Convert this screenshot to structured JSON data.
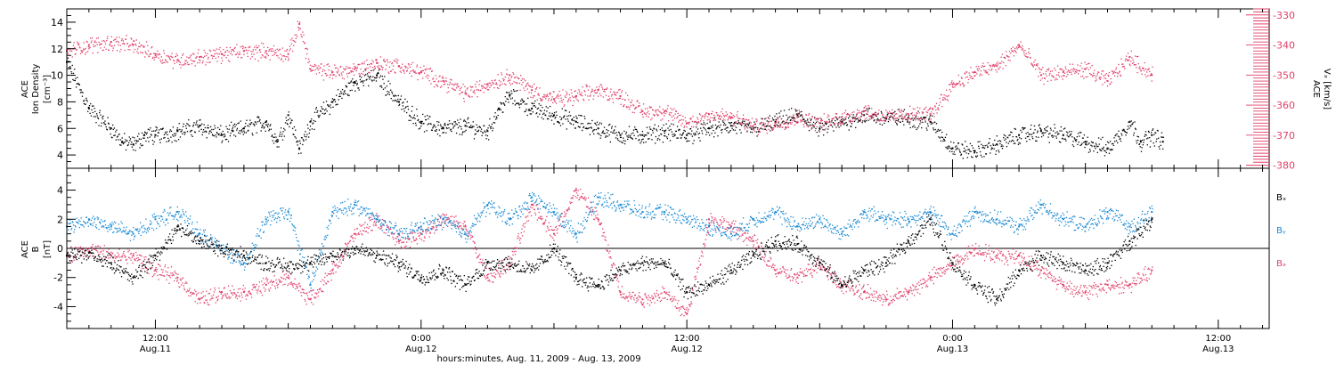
{
  "colors": {
    "black": "#000000",
    "blue": "#1a8ad4",
    "pink": "#e0406a"
  },
  "x_axis": {
    "ticks": [
      {
        "time": "12:00",
        "date": "Aug.11",
        "hours": 12
      },
      {
        "time": "0:00",
        "date": "Aug.12",
        "hours": 24
      },
      {
        "time": "12:00",
        "date": "Aug.12",
        "hours": 36
      },
      {
        "time": "0:00",
        "date": "Aug.13",
        "hours": 48
      },
      {
        "time": "12:00",
        "date": "Aug.13",
        "hours": 60
      }
    ],
    "label": "hours:minutes, Aug. 11, 2009 - Aug. 13, 2009",
    "range_hours": [
      8.0,
      62.3
    ]
  },
  "chart_data": [
    {
      "type": "scatter",
      "panel": "top",
      "ylabel_left": [
        "ACE",
        "Ion Density",
        "[cm⁻³]"
      ],
      "ylabel_right": [
        "ACE",
        "Vₓ [km/s]"
      ],
      "left_axis": {
        "ylim": [
          3,
          15
        ],
        "ticks": [
          "4",
          "6",
          "8",
          "10",
          "12",
          "14"
        ],
        "tick_values": [
          4,
          6,
          8,
          10,
          12,
          14
        ]
      },
      "right_axis": {
        "ylim": [
          -381,
          -328
        ],
        "ticks": [
          "-330",
          "-340",
          "-350",
          "-360",
          "-370",
          "-380"
        ],
        "tick_values": [
          -330,
          -340,
          -350,
          -360,
          -370,
          -380
        ]
      },
      "series": [
        {
          "color": "black",
          "axis": "left",
          "x": [
            8.0,
            9.0,
            10.0,
            10.5,
            11.0,
            11.5,
            12.0,
            13.0,
            14.0,
            15.0,
            15.5,
            16.0,
            17.0,
            17.5,
            18.0,
            18.5,
            19.0,
            20.0,
            21.0,
            22.0,
            23.0,
            24.0,
            25.0,
            26.0,
            27.0,
            27.5,
            28.0,
            29.0,
            30.0,
            31.0,
            32.0,
            33.0,
            34.0,
            35.0,
            36.0,
            37.0,
            38.0,
            39.0,
            40.0,
            41.0,
            42.0,
            43.0,
            44.0,
            45.0,
            46.0,
            47.0,
            48.0,
            49.0,
            50.0,
            51.0,
            52.0,
            53.0,
            54.0,
            55.0,
            56.0,
            56.5,
            57.0,
            57.5
          ],
          "y": [
            11.0,
            7.5,
            6.0,
            5.0,
            4.8,
            5.5,
            5.5,
            5.8,
            6.2,
            5.5,
            5.8,
            6.0,
            6.5,
            5.0,
            7.0,
            4.5,
            6.5,
            8.0,
            9.5,
            10.0,
            8.0,
            6.5,
            6.0,
            6.2,
            5.8,
            7.5,
            8.5,
            7.5,
            7.0,
            6.5,
            6.0,
            5.5,
            5.5,
            5.8,
            5.5,
            6.0,
            6.2,
            6.0,
            6.5,
            7.0,
            6.0,
            6.5,
            7.0,
            6.8,
            6.8,
            6.5,
            4.5,
            4.3,
            4.8,
            5.5,
            5.8,
            5.5,
            5.0,
            4.5,
            6.5,
            5.0,
            5.5,
            5.0
          ]
        },
        {
          "color": "pink",
          "axis": "right",
          "x": [
            8.0,
            9.0,
            10.0,
            11.0,
            12.0,
            13.0,
            14.0,
            15.0,
            16.0,
            17.0,
            18.0,
            18.5,
            19.0,
            20.0,
            21.0,
            22.0,
            23.0,
            24.0,
            25.0,
            26.0,
            27.0,
            28.0,
            29.0,
            30.0,
            31.0,
            32.0,
            33.0,
            34.0,
            35.0,
            36.0,
            37.0,
            38.0,
            39.0,
            40.0,
            41.0,
            42.0,
            43.0,
            44.0,
            45.0,
            46.0,
            47.0,
            48.0,
            49.0,
            50.0,
            51.0,
            52.0,
            53.0,
            54.0,
            55.0,
            56.0,
            57.0
          ],
          "y": [
            -342,
            -340,
            -339,
            -340,
            -343,
            -345,
            -344,
            -343,
            -342,
            -342,
            -343,
            -333,
            -348,
            -349,
            -348,
            -346,
            -347,
            -349,
            -352,
            -356,
            -353,
            -350,
            -355,
            -358,
            -357,
            -355,
            -357,
            -362,
            -362,
            -366,
            -363,
            -364,
            -367,
            -366,
            -364,
            -366,
            -364,
            -362,
            -364,
            -363,
            -363,
            -353,
            -349,
            -347,
            -340,
            -350,
            -349,
            -348,
            -352,
            -344,
            -350
          ]
        }
      ]
    },
    {
      "type": "scatter",
      "panel": "bottom",
      "ylabel": [
        "ACE",
        "B",
        "[nT]"
      ],
      "ylim": [
        -5.5,
        5.5
      ],
      "yticks": [
        "-4",
        "-2",
        "0",
        "2",
        "4"
      ],
      "ytick_values": [
        -4,
        -2,
        0,
        2,
        4
      ],
      "legend": [
        {
          "label": "Bₓ",
          "color": "black"
        },
        {
          "label": "Bᵧ",
          "color": "blue"
        },
        {
          "label": "Bₔ",
          "color": "pink"
        }
      ],
      "legend_position": "right",
      "series": [
        {
          "color": "black",
          "x": [
            8.0,
            9.0,
            10.0,
            11.0,
            12.0,
            13.0,
            14.0,
            15.0,
            16.0,
            17.0,
            18.0,
            19.0,
            20.0,
            21.0,
            22.0,
            23.0,
            24.0,
            25.0,
            26.0,
            27.0,
            28.0,
            29.0,
            30.0,
            31.0,
            32.0,
            33.0,
            34.0,
            35.0,
            36.0,
            37.0,
            38.0,
            39.0,
            40.0,
            41.0,
            42.0,
            43.0,
            44.0,
            45.0,
            46.0,
            47.0,
            48.0,
            49.0,
            50.0,
            51.0,
            52.0,
            53.0,
            54.0,
            55.0,
            56.0,
            57.0
          ],
          "y": [
            -0.5,
            -0.3,
            -1.0,
            -2.0,
            -0.5,
            1.5,
            0.5,
            0.0,
            -0.5,
            -1.0,
            -1.2,
            -1.0,
            -0.5,
            0.0,
            -0.5,
            -1.0,
            -2.0,
            -1.5,
            -2.5,
            -1.0,
            -1.0,
            -1.5,
            0.0,
            -2.0,
            -2.5,
            -1.5,
            -1.0,
            -1.0,
            -3.0,
            -2.5,
            -1.5,
            -0.5,
            0.5,
            0.3,
            -1.0,
            -2.5,
            -1.5,
            -1.0,
            0.5,
            2.0,
            -1.0,
            -2.5,
            -3.5,
            -1.5,
            -0.5,
            -1.0,
            -1.5,
            -1.0,
            0.5,
            2.0
          ]
        },
        {
          "color": "blue",
          "x": [
            8.0,
            9.0,
            10.0,
            11.0,
            12.0,
            13.0,
            14.0,
            15.0,
            16.0,
            17.0,
            18.0,
            19.0,
            20.0,
            21.0,
            22.0,
            23.0,
            24.0,
            25.0,
            26.0,
            27.0,
            28.0,
            29.0,
            30.0,
            31.0,
            32.0,
            33.0,
            34.0,
            35.0,
            36.0,
            37.0,
            38.0,
            39.0,
            40.0,
            41.0,
            42.0,
            43.0,
            44.0,
            45.0,
            46.0,
            47.0,
            48.0,
            49.0,
            50.0,
            51.0,
            52.0,
            53.0,
            54.0,
            55.0,
            56.0,
            57.0
          ],
          "y": [
            1.5,
            2.0,
            1.5,
            1.0,
            2.0,
            2.5,
            1.0,
            0.0,
            -1.0,
            2.0,
            2.5,
            -2.5,
            2.5,
            3.0,
            2.0,
            1.0,
            1.5,
            2.0,
            1.0,
            3.0,
            2.0,
            3.5,
            2.5,
            1.0,
            3.5,
            3.0,
            2.5,
            2.5,
            2.0,
            1.5,
            1.0,
            2.0,
            2.5,
            1.5,
            2.0,
            1.0,
            2.5,
            2.0,
            2.0,
            2.5,
            1.0,
            2.5,
            2.0,
            1.5,
            3.0,
            2.0,
            1.5,
            2.5,
            1.5,
            2.5
          ]
        },
        {
          "color": "pink",
          "x": [
            8.0,
            9.0,
            10.0,
            11.0,
            12.0,
            13.0,
            14.0,
            15.0,
            16.0,
            17.0,
            18.0,
            19.0,
            20.0,
            21.0,
            22.0,
            23.0,
            24.0,
            25.0,
            26.0,
            27.0,
            28.0,
            29.0,
            30.0,
            31.0,
            32.0,
            33.0,
            34.0,
            35.0,
            36.0,
            37.0,
            38.0,
            39.0,
            40.0,
            41.0,
            42.0,
            43.0,
            44.0,
            45.0,
            46.0,
            47.0,
            48.0,
            49.0,
            50.0,
            51.0,
            52.0,
            53.0,
            54.0,
            55.0,
            56.0,
            57.0
          ],
          "y": [
            -0.5,
            0.0,
            -0.5,
            -0.5,
            -1.5,
            -2.0,
            -3.5,
            -3.0,
            -3.0,
            -2.5,
            -2.0,
            -3.5,
            -1.5,
            1.0,
            2.0,
            0.5,
            1.0,
            2.0,
            1.5,
            -2.0,
            -1.0,
            3.0,
            1.0,
            4.0,
            2.0,
            -3.0,
            -3.5,
            -3.0,
            -4.5,
            2.0,
            1.5,
            0.5,
            -1.5,
            -2.0,
            -1.0,
            -2.5,
            -3.0,
            -3.5,
            -3.0,
            -2.0,
            -1.0,
            0.0,
            -0.5,
            -0.5,
            -1.5,
            -2.5,
            -3.0,
            -2.5,
            -2.5,
            -1.5
          ]
        }
      ]
    }
  ]
}
